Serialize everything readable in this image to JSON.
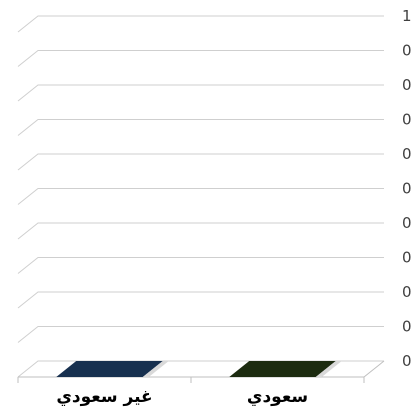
{
  "chart_data": {
    "type": "bar",
    "style": "3d-clustered-column",
    "categories": [
      "غير سعودي",
      "سعودي"
    ],
    "values": [
      0,
      0
    ],
    "y_tick_labels": [
      "0",
      "0",
      "0",
      "0",
      "0",
      "0",
      "0",
      "0",
      "0",
      "0",
      "1"
    ],
    "ylim": [
      0,
      1
    ],
    "grid": true,
    "legend": "none",
    "colors": {
      "bar_fills": [
        "#17304f",
        "#1c2b10"
      ],
      "gridline": "#cfcfcf",
      "axis": "#bfbfbf",
      "tick_text": "#404040",
      "category_text": "#000000"
    }
  }
}
